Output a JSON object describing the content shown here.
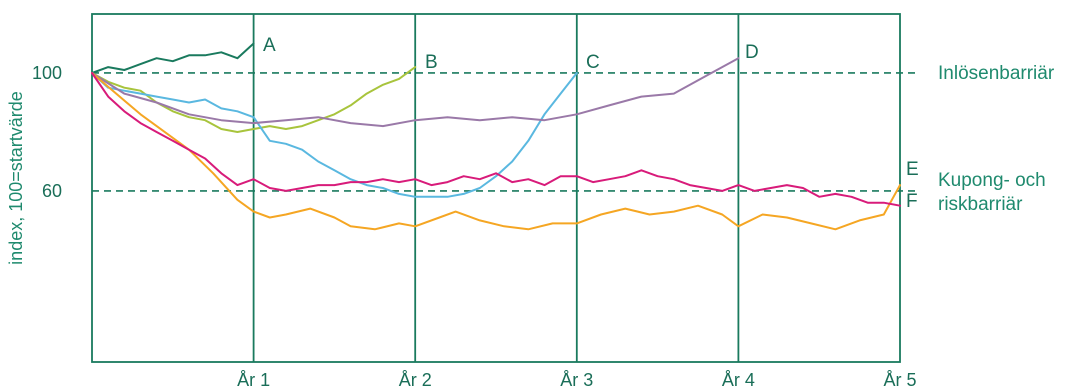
{
  "chart_data": {
    "type": "line",
    "ylabel": "index, 100=startvärde",
    "xlabel": "",
    "x_ticks": [
      {
        "x": 1,
        "label": "År 1"
      },
      {
        "x": 2,
        "label": "År 2"
      },
      {
        "x": 3,
        "label": "År 3"
      },
      {
        "x": 4,
        "label": "År 4"
      },
      {
        "x": 5,
        "label": "År 5"
      }
    ],
    "y_ticks": [
      {
        "y": 60,
        "label": "60"
      },
      {
        "y": 100,
        "label": "100"
      }
    ],
    "xlim": [
      0,
      5
    ],
    "ylim": [
      2,
      120
    ],
    "grid": "vertical lines at each year",
    "reference_lines": [
      {
        "y": 100,
        "style": "dashed",
        "label": "Inlösenbarriär"
      },
      {
        "y": 60,
        "style": "dashed",
        "label_lines": [
          "Kupong- och",
          "riskbarriär"
        ]
      }
    ],
    "series": [
      {
        "name": "A",
        "color": "#1a7a5e",
        "end_label": "A",
        "x": [
          0,
          0.1,
          0.2,
          0.3,
          0.4,
          0.5,
          0.6,
          0.7,
          0.8,
          0.9,
          1.0
        ],
        "y": [
          100,
          102,
          101,
          103,
          105,
          104,
          106,
          106,
          107,
          105,
          110
        ]
      },
      {
        "name": "B",
        "color": "#a8c43c",
        "end_label": "B",
        "x": [
          0,
          0.1,
          0.2,
          0.3,
          0.4,
          0.5,
          0.6,
          0.7,
          0.8,
          0.9,
          1.0,
          1.1,
          1.2,
          1.3,
          1.4,
          1.5,
          1.6,
          1.7,
          1.8,
          1.9,
          2.0
        ],
        "y": [
          100,
          97,
          95,
          94,
          90,
          87,
          85,
          84,
          81,
          80,
          81,
          82,
          81,
          82,
          84,
          86,
          89,
          93,
          96,
          98,
          102
        ]
      },
      {
        "name": "C",
        "color": "#5ab8e0",
        "end_label": "C",
        "x": [
          0,
          0.1,
          0.2,
          0.3,
          0.4,
          0.5,
          0.6,
          0.7,
          0.8,
          0.9,
          1.0,
          1.1,
          1.2,
          1.3,
          1.4,
          1.5,
          1.6,
          1.7,
          1.8,
          1.9,
          2.0,
          2.1,
          2.2,
          2.3,
          2.4,
          2.5,
          2.6,
          2.7,
          2.8,
          2.9,
          3.0
        ],
        "y": [
          100,
          95,
          94,
          93,
          92,
          91,
          90,
          91,
          88,
          87,
          85,
          77,
          76,
          74,
          70,
          67,
          64,
          62,
          61,
          59,
          58,
          58,
          58,
          59,
          61,
          65,
          70,
          77,
          86,
          93,
          100
        ]
      },
      {
        "name": "D",
        "color": "#9a79a8",
        "end_label": "D",
        "x": [
          0,
          0.2,
          0.4,
          0.6,
          0.8,
          1.0,
          1.2,
          1.4,
          1.6,
          1.8,
          2.0,
          2.2,
          2.4,
          2.6,
          2.8,
          3.0,
          3.2,
          3.4,
          3.6,
          3.8,
          4.0
        ],
        "y": [
          100,
          93,
          90,
          86,
          84,
          83,
          84,
          85,
          83,
          82,
          84,
          85,
          84,
          85,
          84,
          86,
          89,
          92,
          93,
          99,
          105
        ]
      },
      {
        "name": "E",
        "color": "#f5a623",
        "end_label": "E",
        "x": [
          0,
          0.3,
          0.6,
          0.75,
          0.9,
          1.0,
          1.1,
          1.2,
          1.35,
          1.5,
          1.6,
          1.75,
          1.9,
          2.0,
          2.15,
          2.25,
          2.4,
          2.55,
          2.7,
          2.85,
          3.0,
          3.15,
          3.3,
          3.45,
          3.6,
          3.75,
          3.9,
          4.0,
          4.15,
          4.3,
          4.45,
          4.6,
          4.75,
          4.9,
          5.0
        ],
        "y": [
          100,
          86,
          74,
          66,
          57,
          53,
          51,
          52,
          54,
          51,
          48,
          47,
          49,
          48,
          51,
          53,
          50,
          48,
          47,
          49,
          49,
          52,
          54,
          52,
          53,
          55,
          52,
          48,
          52,
          51,
          49,
          47,
          50,
          52,
          62
        ]
      },
      {
        "name": "F",
        "color": "#d81b7a",
        "end_label": "F",
        "x": [
          0,
          0.1,
          0.2,
          0.3,
          0.4,
          0.5,
          0.6,
          0.7,
          0.8,
          0.9,
          1.0,
          1.1,
          1.2,
          1.3,
          1.4,
          1.5,
          1.6,
          1.7,
          1.8,
          1.9,
          2.0,
          2.1,
          2.2,
          2.3,
          2.4,
          2.5,
          2.6,
          2.7,
          2.8,
          2.9,
          3.0,
          3.1,
          3.2,
          3.3,
          3.4,
          3.5,
          3.6,
          3.7,
          3.8,
          3.9,
          4.0,
          4.1,
          4.2,
          4.3,
          4.4,
          4.5,
          4.6,
          4.7,
          4.8,
          4.9,
          5.0
        ],
        "y": [
          100,
          92,
          87,
          83,
          80,
          77,
          74,
          71,
          66,
          62,
          64,
          61,
          60,
          61,
          62,
          62,
          63,
          63,
          64,
          63,
          64,
          62,
          63,
          65,
          64,
          66,
          63,
          64,
          62,
          65,
          65,
          63,
          64,
          65,
          67,
          65,
          64,
          62,
          61,
          60,
          62,
          60,
          61,
          62,
          61,
          58,
          59,
          58,
          56,
          56,
          55
        ]
      }
    ]
  }
}
